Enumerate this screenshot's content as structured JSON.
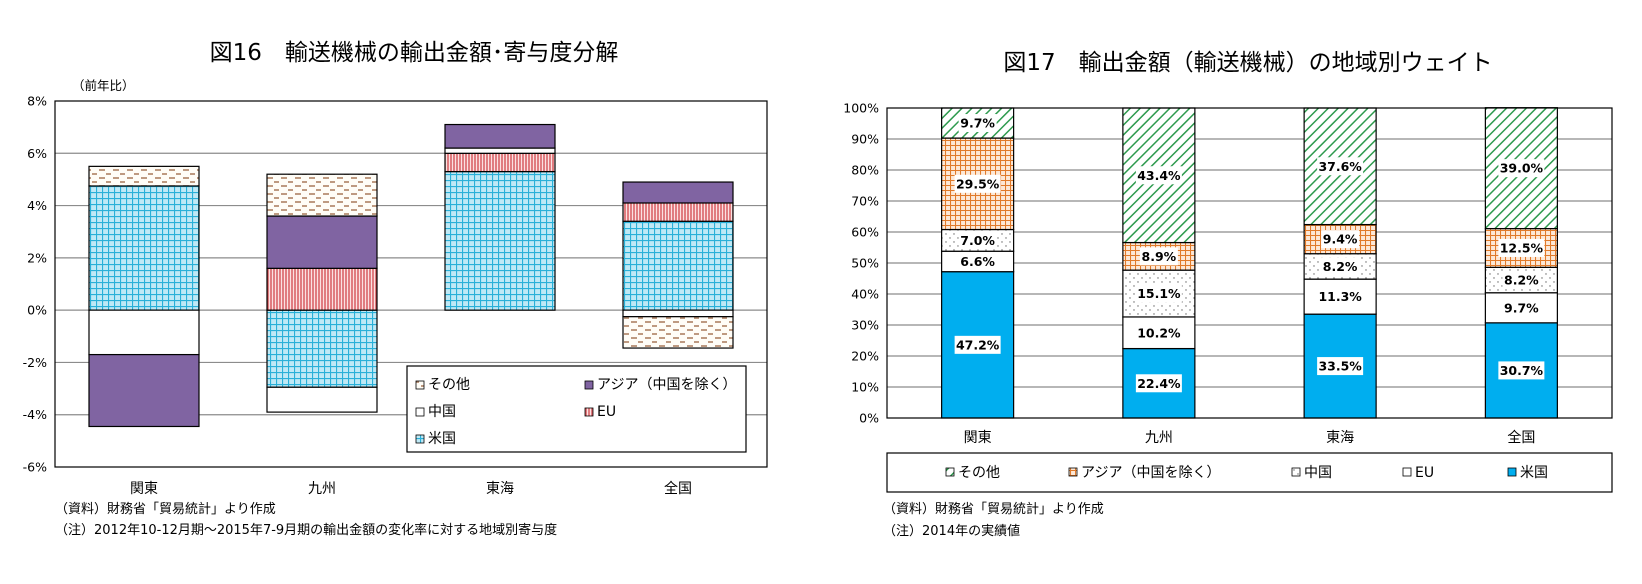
{
  "chart_data": [
    {
      "id": "fig16",
      "type": "bar",
      "stacked": true,
      "title": "図16　輸送機械の輸出金額･寄与度分解",
      "ylabel": "（前年比）",
      "xlabel": "",
      "ylim": [
        -6,
        8
      ],
      "yticks": [
        8,
        6,
        4,
        2,
        0,
        -2,
        -4,
        -6
      ],
      "ytick_labels": [
        "8%",
        "6%",
        "4%",
        "2%",
        "0%",
        "-2%",
        "-4%",
        "-6%"
      ],
      "grid": true,
      "categories": [
        "関東",
        "九州",
        "東海",
        "全国"
      ],
      "series": [
        {
          "name": "米国",
          "key": "us",
          "color": "#29b0d8",
          "values": [
            4.75,
            -2.95,
            5.3,
            3.4
          ]
        },
        {
          "name": "EU",
          "key": "eu",
          "color": "#c0282e",
          "values": [
            0.0,
            1.6,
            0.7,
            0.7
          ]
        },
        {
          "name": "中国",
          "key": "cn",
          "color": "#ffffff",
          "values": [
            -1.7,
            -0.95,
            0.2,
            -0.25
          ]
        },
        {
          "name": "アジア（中国を除く）",
          "key": "asia",
          "color": "#8064a2",
          "values": [
            -2.75,
            2.0,
            0.9,
            0.8
          ]
        },
        {
          "name": "その他",
          "key": "other",
          "color": "#b07a50",
          "values": [
            0.75,
            1.6,
            0.0,
            -1.2
          ]
        }
      ],
      "legend": {
        "placement": "bottom-right-inside",
        "entries": [
          "その他",
          "アジア（中国を除く）",
          "中国",
          "EU",
          "米国"
        ]
      },
      "notes": [
        "（資料）財務省「貿易統計」より作成",
        "（注）2012年10-12月期～2015年7-9月期の輸出金額の変化率に対する地域別寄与度"
      ]
    },
    {
      "id": "fig17",
      "type": "bar",
      "stacked": true,
      "title": "図17　輸出金額（輸送機械）の地域別ウェイト",
      "xlabel": "",
      "ylabel": "",
      "ylim": [
        0,
        100
      ],
      "yticks": [
        100,
        90,
        80,
        70,
        60,
        50,
        40,
        30,
        20,
        10,
        0
      ],
      "ytick_labels": [
        "100%",
        "90%",
        "80%",
        "70%",
        "60%",
        "50%",
        "40%",
        "30%",
        "20%",
        "10%",
        "0%"
      ],
      "grid": true,
      "categories": [
        "関東",
        "九州",
        "東海",
        "全国"
      ],
      "series": [
        {
          "name": "米国",
          "key": "us",
          "color": "#00aeef",
          "values": [
            47.2,
            22.4,
            33.5,
            30.7
          ],
          "labels": [
            "47.2%",
            "22.4%",
            "33.5%",
            "30.7%"
          ]
        },
        {
          "name": "EU",
          "key": "eu",
          "color": "#ffffff",
          "values": [
            6.6,
            10.2,
            11.3,
            9.7
          ],
          "labels": [
            "6.6%",
            "10.2%",
            "11.3%",
            "9.7%"
          ]
        },
        {
          "name": "中国",
          "key": "cn",
          "color": "#ffffff",
          "values": [
            7.0,
            15.1,
            8.2,
            8.2
          ],
          "labels": [
            "7.0%",
            "15.1%",
            "8.2%",
            "8.2%"
          ]
        },
        {
          "name": "アジア（中国を除く）",
          "key": "asia",
          "color": "#e07a2a",
          "values": [
            29.5,
            8.9,
            9.4,
            12.5
          ],
          "labels": [
            "29.5%",
            "8.9%",
            "9.4%",
            "12.5%"
          ]
        },
        {
          "name": "その他",
          "key": "other",
          "color": "#2e9a4e",
          "values": [
            9.7,
            43.4,
            37.6,
            39.0
          ],
          "labels": [
            "9.7%",
            "43.4%",
            "37.6%",
            "39.0%"
          ]
        }
      ],
      "legend": {
        "placement": "bottom",
        "entries": [
          "その他",
          "アジア（中国を除く）",
          "中国",
          "EU",
          "米国"
        ]
      },
      "notes": [
        "（資料）財務省「貿易統計」より作成",
        "（注）2014年の実績値"
      ]
    }
  ]
}
